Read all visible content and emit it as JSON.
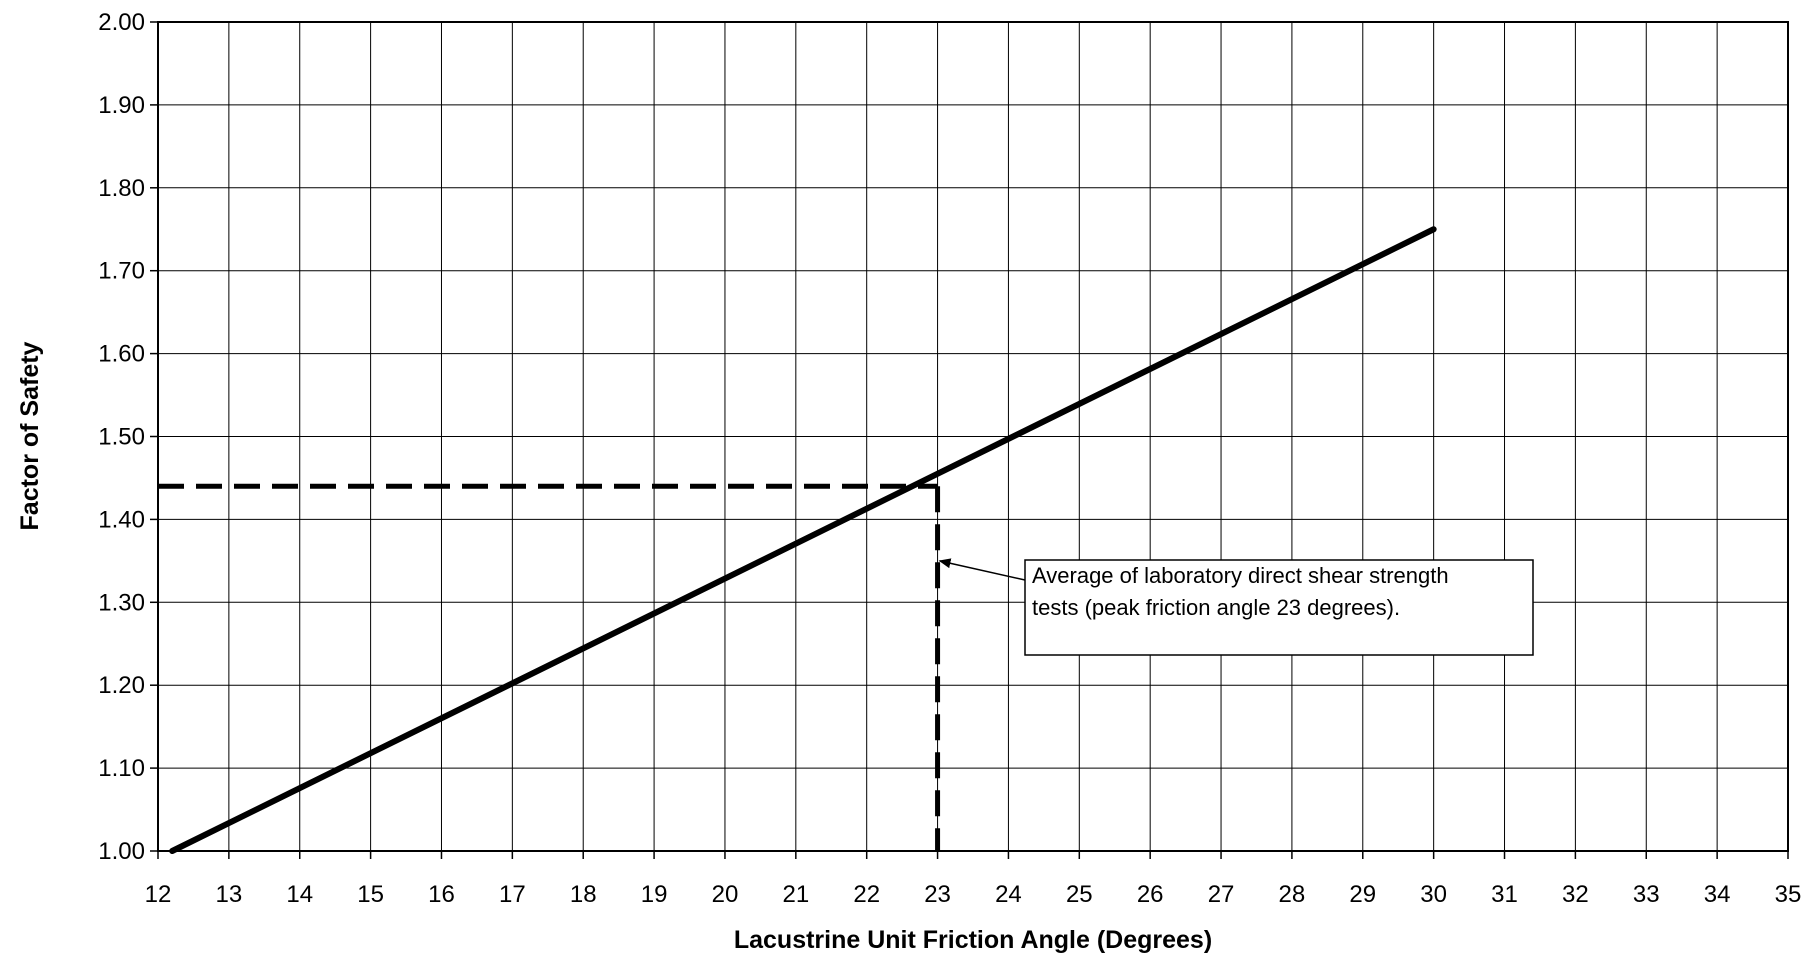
{
  "chart_data": {
    "type": "line",
    "title": "",
    "xlabel": "Lacustrine Unit Friction Angle (Degrees)",
    "ylabel": "Factor of Safety",
    "xlim": [
      12,
      35
    ],
    "ylim": [
      1.0,
      2.0
    ],
    "x_ticks": [
      12,
      13,
      14,
      15,
      16,
      17,
      18,
      19,
      20,
      21,
      22,
      23,
      24,
      25,
      26,
      27,
      28,
      29,
      30,
      31,
      32,
      33,
      34,
      35
    ],
    "y_ticks": [
      "1.00",
      "1.10",
      "1.20",
      "1.30",
      "1.40",
      "1.50",
      "1.60",
      "1.70",
      "1.80",
      "1.90",
      "2.00"
    ],
    "grid": true,
    "series": [
      {
        "x": [
          12.2,
          30.0
        ],
        "y": [
          1.0,
          1.75
        ],
        "color": "#000000"
      }
    ],
    "reference_lines": [
      {
        "style": "dashed",
        "from": [
          12,
          1.44
        ],
        "to": [
          23,
          1.44
        ]
      },
      {
        "style": "dashed",
        "from": [
          23,
          1.44
        ],
        "to": [
          23,
          1.0
        ]
      }
    ],
    "annotation": {
      "lines": [
        "Average of laboratory direct shear strength",
        "tests (peak friction angle 23 degrees)."
      ],
      "points_to": [
        23,
        1.35
      ]
    }
  }
}
